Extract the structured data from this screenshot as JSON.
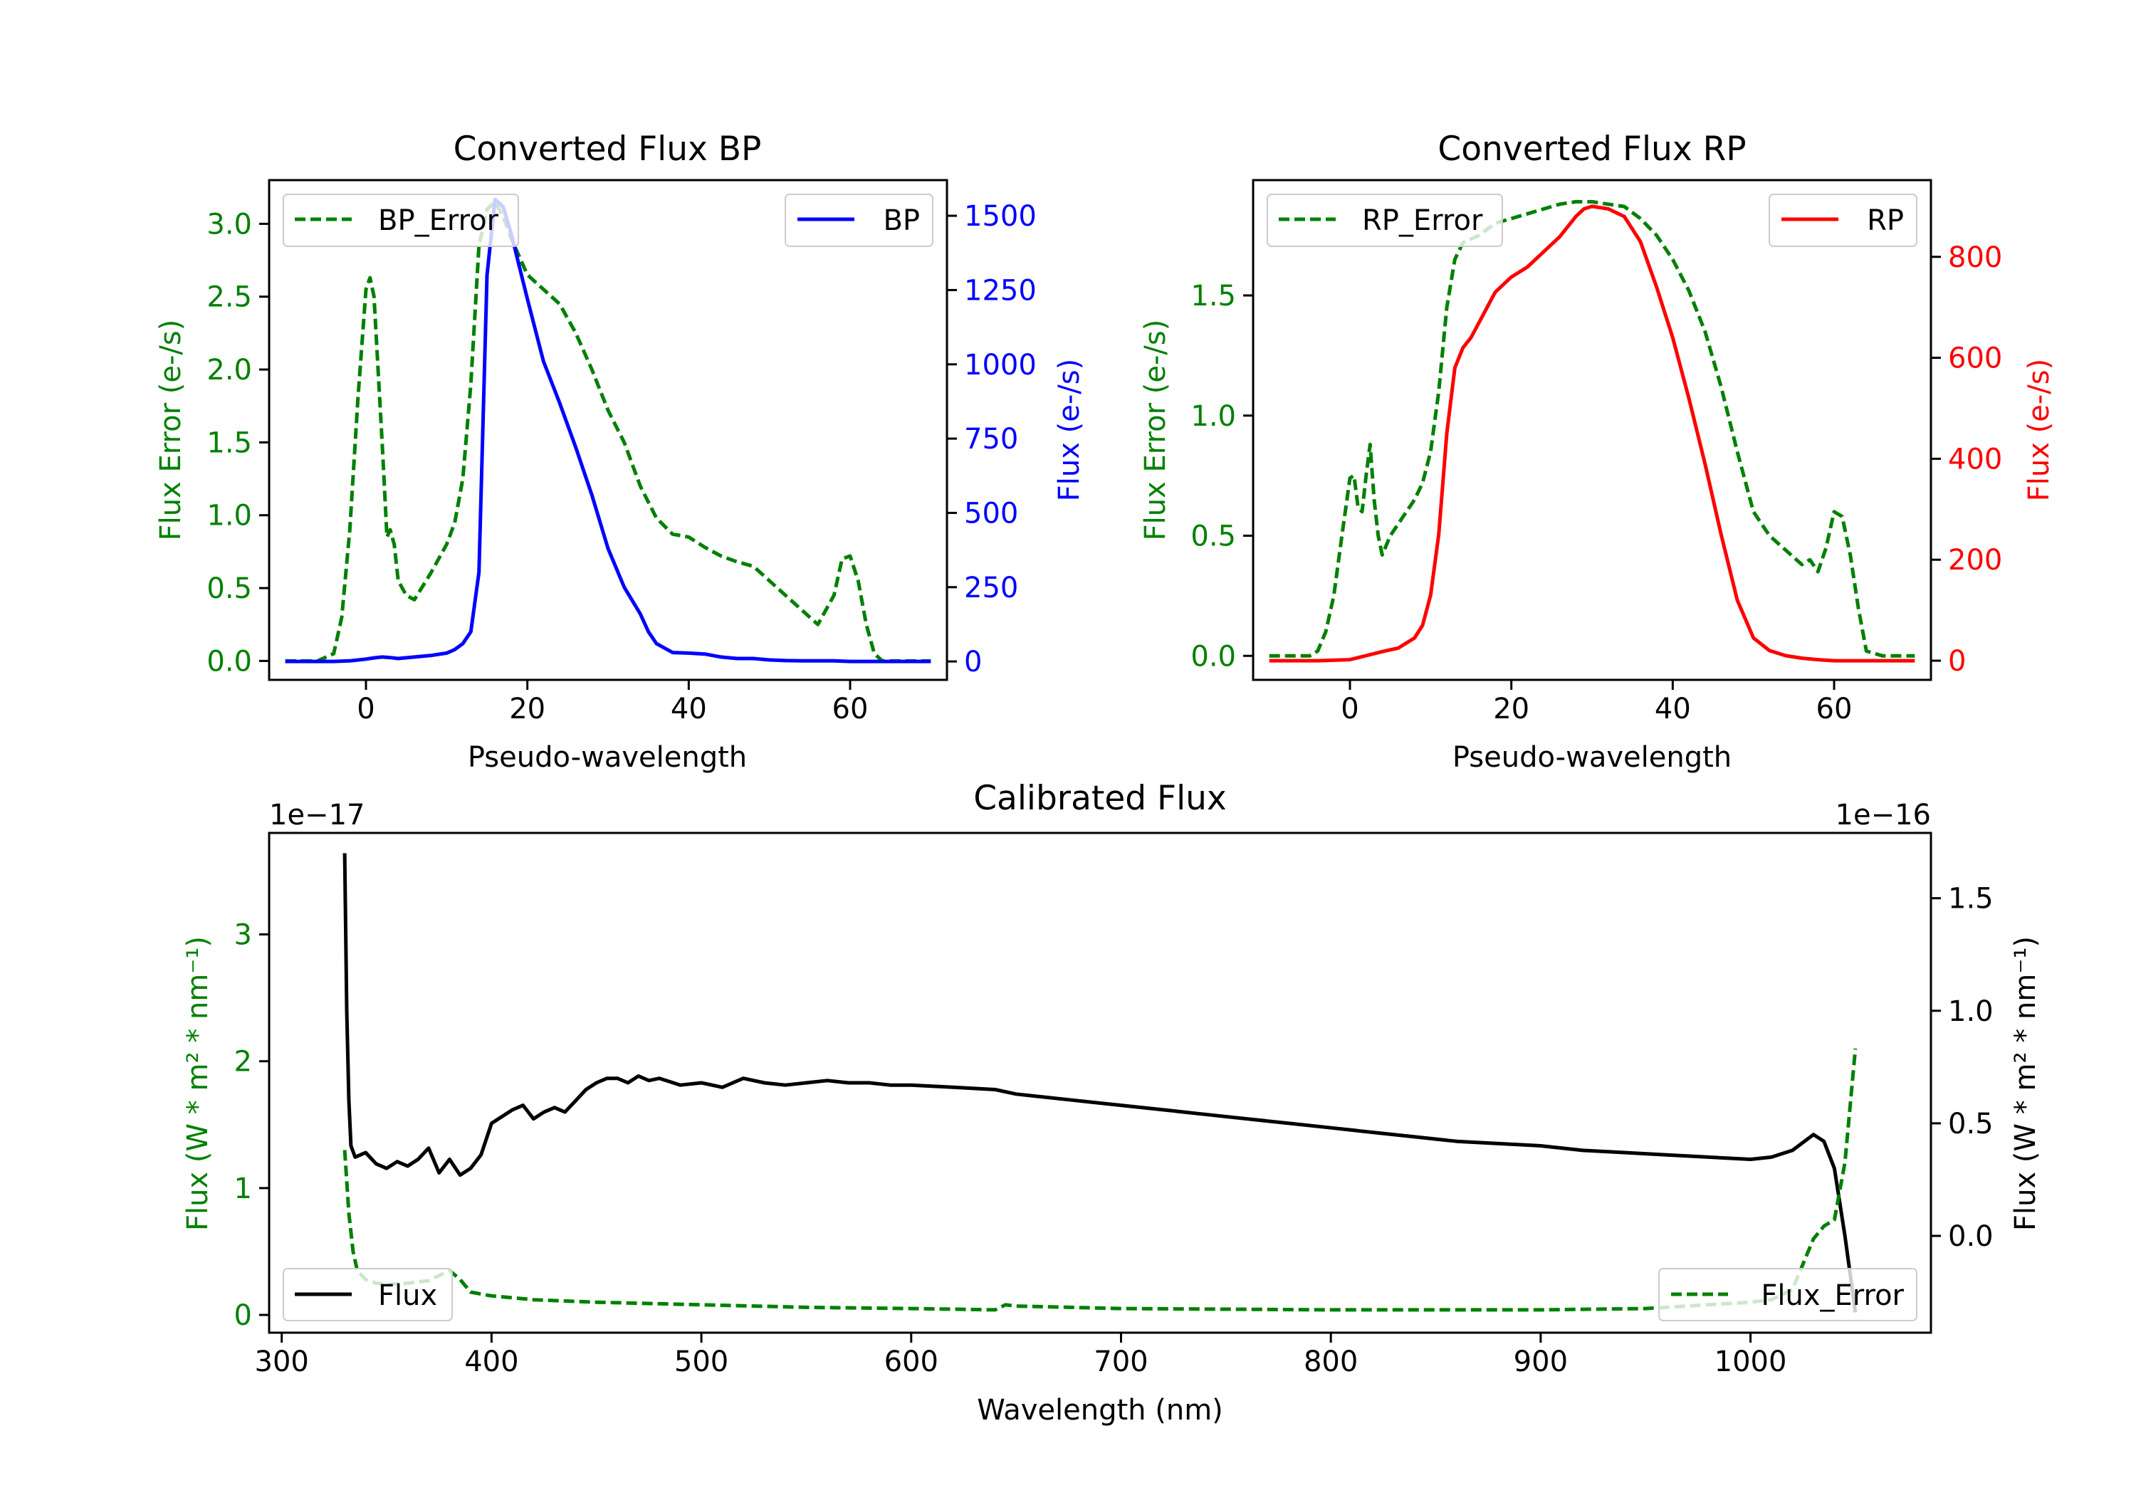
{
  "chart_data": [
    {
      "id": "bp",
      "type": "line",
      "title": "Converted Flux BP",
      "xlabel": "Pseudo-wavelength",
      "ylabel_left": "Flux Error (e-/s)",
      "ylabel_right": "Flux (e-/s)",
      "xlim": [
        -12,
        72
      ],
      "ylim_left": [
        -0.13,
        3.3
      ],
      "ylim_right": [
        -62,
        1620
      ],
      "xticks": [
        0,
        20,
        40,
        60
      ],
      "yticks_left": [
        0.0,
        0.5,
        1.0,
        1.5,
        2.0,
        2.5,
        3.0
      ],
      "yticks_left_labels": [
        "0.0",
        "0.5",
        "1.0",
        "1.5",
        "2.0",
        "2.5",
        "3.0"
      ],
      "yticks_right": [
        0,
        250,
        500,
        750,
        1000,
        1250,
        1500
      ],
      "yticks_right_labels": [
        "0",
        "250",
        "500",
        "750",
        "1000",
        "1250",
        "1500"
      ],
      "colors": {
        "left_axis": "#008000",
        "right_axis": "#0000ff",
        "error": "#008000",
        "flux": "#0000ff"
      },
      "legend_left": {
        "label": "BP_Error",
        "position": "upper left"
      },
      "legend_right": {
        "label": "BP",
        "position": "upper right"
      },
      "series": [
        {
          "name": "BP_Error",
          "axis": "left",
          "style": "dashed",
          "color": "#008000",
          "x": [
            -10,
            -6,
            -4,
            -3,
            -2,
            -1,
            0,
            0.5,
            1,
            2,
            2.6,
            3,
            3.5,
            4,
            5,
            6,
            8,
            10,
            11,
            12,
            13,
            14,
            15,
            16,
            17,
            18,
            20,
            22,
            23,
            24,
            26,
            28,
            30,
            32,
            34,
            36,
            38,
            40,
            42,
            44,
            46,
            48,
            50,
            52,
            54,
            56,
            58,
            59,
            60,
            61,
            62,
            63,
            64,
            66,
            68,
            70
          ],
          "y": [
            0,
            0,
            0.05,
            0.3,
            0.9,
            1.8,
            2.55,
            2.63,
            2.5,
            1.5,
            0.85,
            0.9,
            0.8,
            0.55,
            0.45,
            0.42,
            0.6,
            0.8,
            0.95,
            1.25,
            1.9,
            2.85,
            3.1,
            3.15,
            3.05,
            2.9,
            2.65,
            2.55,
            2.5,
            2.45,
            2.25,
            2.0,
            1.72,
            1.5,
            1.2,
            0.98,
            0.87,
            0.85,
            0.78,
            0.72,
            0.68,
            0.65,
            0.55,
            0.45,
            0.35,
            0.25,
            0.45,
            0.7,
            0.72,
            0.55,
            0.25,
            0.05,
            0,
            0,
            0,
            0
          ]
        },
        {
          "name": "BP",
          "axis": "right",
          "style": "solid",
          "color": "#0000ff",
          "x": [
            -10,
            -4,
            -2,
            0,
            1,
            2,
            3,
            4,
            6,
            8,
            10,
            11,
            12,
            13,
            14,
            15,
            16,
            17,
            18,
            19,
            20,
            22,
            24,
            26,
            28,
            30,
            32,
            34,
            35,
            36,
            38,
            40,
            42,
            44,
            46,
            48,
            50,
            52,
            54,
            56,
            58,
            60,
            62,
            64,
            66,
            68,
            70
          ],
          "y": [
            0,
            0,
            2,
            8,
            12,
            15,
            13,
            10,
            15,
            20,
            28,
            40,
            60,
            100,
            300,
            1300,
            1555,
            1530,
            1440,
            1330,
            1220,
            1010,
            870,
            720,
            560,
            380,
            250,
            160,
            100,
            60,
            30,
            28,
            25,
            15,
            10,
            10,
            5,
            3,
            2,
            2,
            2,
            0,
            0,
            0,
            0,
            0,
            0
          ]
        }
      ]
    },
    {
      "id": "rp",
      "type": "line",
      "title": "Converted Flux RP",
      "xlabel": "Pseudo-wavelength",
      "ylabel_left": "Flux Error (e-/s)",
      "ylabel_right": "Flux (e-/s)",
      "xlim": [
        -12,
        72
      ],
      "ylim_left": [
        -0.1,
        1.98
      ],
      "ylim_right": [
        -38,
        952
      ],
      "xticks": [
        0,
        20,
        40,
        60
      ],
      "yticks_left": [
        0.0,
        0.5,
        1.0,
        1.5
      ],
      "yticks_left_labels": [
        "0.0",
        "0.5",
        "1.0",
        "1.5"
      ],
      "yticks_right": [
        0,
        200,
        400,
        600,
        800
      ],
      "yticks_right_labels": [
        "0",
        "200",
        "400",
        "600",
        "800"
      ],
      "colors": {
        "left_axis": "#008000",
        "right_axis": "#ff0000",
        "error": "#008000",
        "flux": "#ff0000"
      },
      "legend_left": {
        "label": "RP_Error",
        "position": "upper left"
      },
      "legend_right": {
        "label": "RP",
        "position": "upper right"
      },
      "series": [
        {
          "name": "RP_Error",
          "axis": "left",
          "style": "dashed",
          "color": "#008000",
          "x": [
            -10,
            -5,
            -4,
            -3,
            -2,
            -1,
            0,
            0.5,
            1,
            1.5,
            2,
            2.5,
            3,
            3.5,
            4,
            5,
            6,
            8,
            9,
            10,
            11,
            12,
            13,
            14,
            16,
            18,
            20,
            22,
            24,
            26,
            28,
            30,
            32,
            34,
            36,
            38,
            40,
            42,
            44,
            46,
            48,
            50,
            52,
            54,
            56,
            57,
            58,
            59,
            60,
            61,
            62,
            63,
            64,
            66,
            68,
            70
          ],
          "y": [
            0,
            0,
            0.02,
            0.1,
            0.25,
            0.5,
            0.74,
            0.75,
            0.62,
            0.6,
            0.75,
            0.88,
            0.65,
            0.5,
            0.42,
            0.5,
            0.55,
            0.65,
            0.72,
            0.85,
            1.1,
            1.45,
            1.65,
            1.72,
            1.75,
            1.8,
            1.82,
            1.84,
            1.86,
            1.88,
            1.89,
            1.89,
            1.88,
            1.87,
            1.82,
            1.75,
            1.65,
            1.52,
            1.35,
            1.12,
            0.85,
            0.6,
            0.5,
            0.44,
            0.38,
            0.4,
            0.35,
            0.45,
            0.6,
            0.58,
            0.42,
            0.2,
            0.02,
            0,
            0,
            0
          ]
        },
        {
          "name": "RP",
          "axis": "right",
          "style": "solid",
          "color": "#ff0000",
          "x": [
            -10,
            -4,
            0,
            2,
            4,
            6,
            8,
            9,
            10,
            11,
            12,
            13,
            14,
            15,
            16,
            18,
            20,
            22,
            24,
            26,
            28,
            29,
            30,
            32,
            34,
            36,
            38,
            40,
            42,
            44,
            46,
            48,
            50,
            52,
            54,
            56,
            58,
            60,
            62,
            64,
            66,
            68,
            70
          ],
          "y": [
            0,
            0,
            2,
            10,
            18,
            25,
            45,
            70,
            130,
            250,
            450,
            580,
            620,
            640,
            670,
            730,
            760,
            780,
            810,
            840,
            880,
            895,
            900,
            895,
            880,
            830,
            740,
            640,
            520,
            390,
            250,
            120,
            45,
            20,
            10,
            5,
            2,
            0,
            0,
            0,
            0,
            0,
            0
          ]
        }
      ]
    },
    {
      "id": "cal",
      "type": "line",
      "title": "Calibrated Flux",
      "xlabel": "Wavelength (nm)",
      "ylabel_left": "Flux (W * m² * nm⁻¹)",
      "ylabel_right": "Flux (W * m² * nm⁻¹)",
      "offset_left": "1e−17",
      "offset_right": "1e−16",
      "xlim": [
        294,
        1086
      ],
      "ylim_left": [
        -0.14,
        3.8
      ],
      "ylim_right": [
        -0.43,
        1.79
      ],
      "xticks": [
        300,
        400,
        500,
        600,
        700,
        800,
        900,
        1000
      ],
      "yticks_left": [
        0,
        1,
        2,
        3
      ],
      "yticks_left_labels": [
        "0",
        "1",
        "2",
        "3"
      ],
      "yticks_right": [
        0.0,
        0.5,
        1.0,
        1.5
      ],
      "yticks_right_labels": [
        "0.0",
        "0.5",
        "1.0",
        "1.5"
      ],
      "colors": {
        "left_axis": "#008000",
        "right_axis": "#000000",
        "error": "#008000",
        "flux": "#000000"
      },
      "legend_left": {
        "label": "Flux",
        "position": "lower left"
      },
      "legend_right": {
        "label": "Flux_Error",
        "position": "lower right"
      },
      "series": [
        {
          "name": "Flux",
          "axis": "right",
          "style": "solid",
          "color": "#000000",
          "x": [
            330,
            331,
            332,
            333,
            335,
            340,
            345,
            350,
            355,
            360,
            365,
            370,
            375,
            380,
            385,
            390,
            395,
            400,
            405,
            410,
            415,
            420,
            425,
            430,
            435,
            440,
            445,
            450,
            455,
            460,
            465,
            470,
            475,
            480,
            490,
            500,
            510,
            520,
            530,
            540,
            550,
            560,
            570,
            580,
            590,
            600,
            620,
            640,
            650,
            660,
            680,
            700,
            720,
            740,
            760,
            780,
            800,
            820,
            840,
            860,
            880,
            900,
            920,
            940,
            960,
            980,
            1000,
            1010,
            1020,
            1030,
            1035,
            1040,
            1045,
            1050
          ],
          "y": [
            1.7,
            1.0,
            0.6,
            0.4,
            0.35,
            0.37,
            0.32,
            0.3,
            0.33,
            0.31,
            0.34,
            0.39,
            0.28,
            0.34,
            0.27,
            0.3,
            0.36,
            0.5,
            0.53,
            0.56,
            0.58,
            0.52,
            0.55,
            0.57,
            0.55,
            0.6,
            0.65,
            0.68,
            0.7,
            0.7,
            0.68,
            0.71,
            0.69,
            0.7,
            0.67,
            0.68,
            0.66,
            0.7,
            0.68,
            0.67,
            0.68,
            0.69,
            0.68,
            0.68,
            0.67,
            0.67,
            0.66,
            0.65,
            0.63,
            0.62,
            0.6,
            0.58,
            0.56,
            0.54,
            0.52,
            0.5,
            0.48,
            0.46,
            0.44,
            0.42,
            0.41,
            0.4,
            0.38,
            0.37,
            0.36,
            0.35,
            0.34,
            0.35,
            0.38,
            0.45,
            0.42,
            0.3,
            0.0,
            -0.34
          ]
        },
        {
          "name": "Flux_Error",
          "axis": "left",
          "style": "dashed",
          "color": "#008000",
          "x": [
            330,
            332,
            334,
            336,
            340,
            345,
            350,
            360,
            370,
            380,
            385,
            390,
            400,
            420,
            450,
            500,
            550,
            600,
            640,
            645,
            650,
            700,
            800,
            900,
            950,
            1000,
            1010,
            1020,
            1025,
            1030,
            1035,
            1040,
            1045,
            1050
          ],
          "y": [
            1.3,
            0.8,
            0.5,
            0.35,
            0.28,
            0.25,
            0.24,
            0.25,
            0.27,
            0.35,
            0.28,
            0.18,
            0.15,
            0.12,
            0.1,
            0.08,
            0.06,
            0.05,
            0.04,
            0.08,
            0.07,
            0.05,
            0.04,
            0.04,
            0.05,
            0.1,
            0.12,
            0.2,
            0.4,
            0.6,
            0.7,
            0.75,
            1.2,
            2.1
          ]
        }
      ]
    }
  ]
}
